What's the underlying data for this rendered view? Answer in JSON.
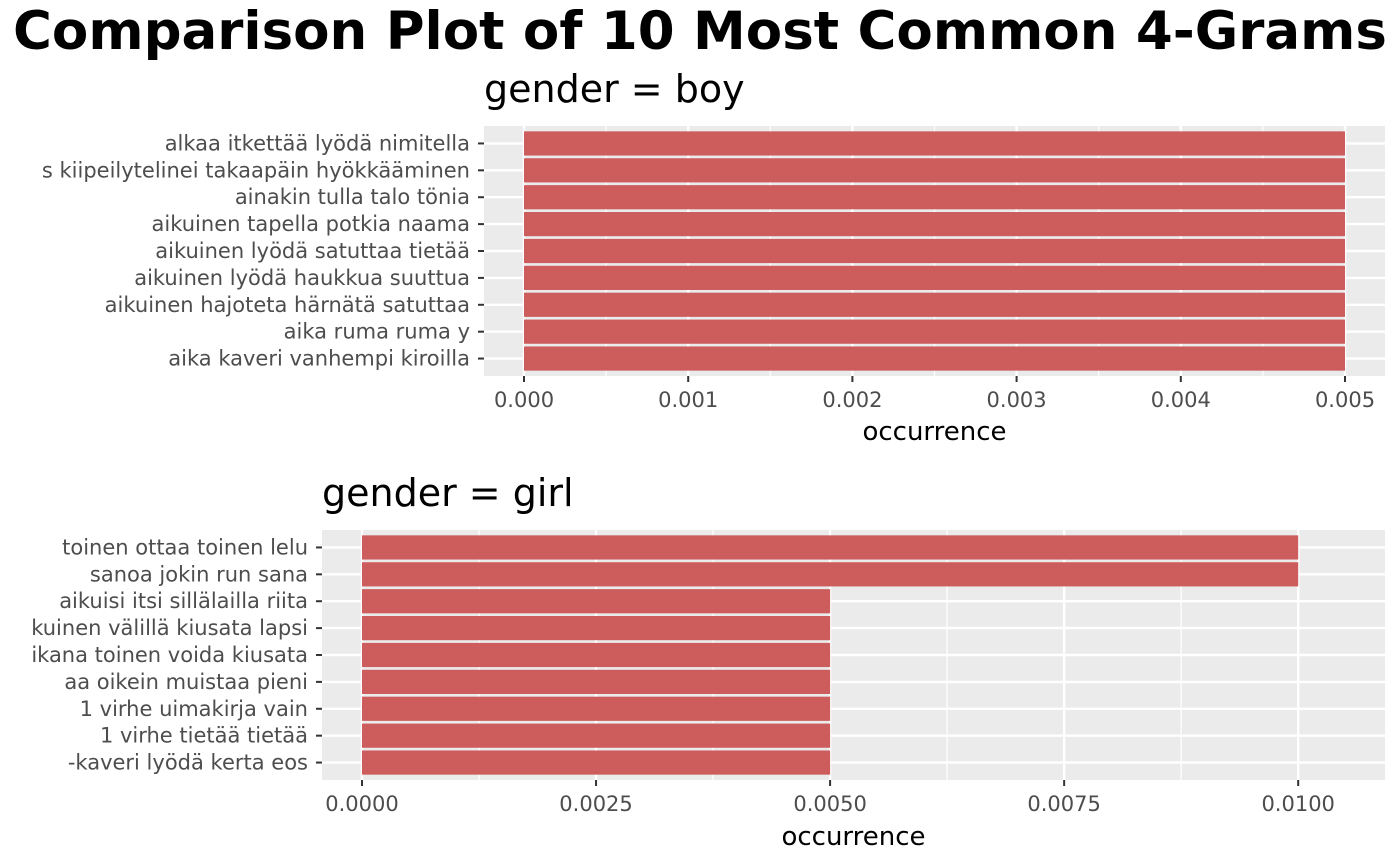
{
  "title": "Comparison Plot of 10 Most Common 4-Grams",
  "chart_data": [
    {
      "type": "bar",
      "orientation": "horizontal",
      "facet_title": "gender = boy",
      "xlabel": "occurrence",
      "ylabel": "",
      "xlim": [
        0,
        0.005
      ],
      "ticks": [
        "0.000",
        "0.001",
        "0.002",
        "0.003",
        "0.004",
        "0.005"
      ],
      "tick_values": [
        0,
        0.001,
        0.002,
        0.003,
        0.004,
        0.005
      ],
      "categories": [
        "alkaa itkettää lyödä nimitella",
        "s kiipeilytelinei takaapäin hyökkääminen",
        "ainakin tulla talo tönia",
        "aikuinen tapella potkia naama",
        "aikuinen lyödä satuttaa tietää",
        "aikuinen lyödä haukkua suuttua",
        "aikuinen hajoteta härnätä satuttaa",
        "aika ruma ruma y",
        "aika kaveri vanhempi kiroilla"
      ],
      "values": [
        0.005,
        0.005,
        0.005,
        0.005,
        0.005,
        0.005,
        0.005,
        0.005,
        0.005
      ],
      "bar_color": "#cd5c5c",
      "panel_color": "#ebebeb",
      "grid": true
    },
    {
      "type": "bar",
      "orientation": "horizontal",
      "facet_title": "gender = girl",
      "xlabel": "occurrence",
      "ylabel": "",
      "xlim": [
        0,
        0.0105
      ],
      "ticks": [
        "0.0000",
        "0.0025",
        "0.0050",
        "0.0075",
        "0.0100"
      ],
      "tick_values": [
        0,
        0.0025,
        0.005,
        0.0075,
        0.01
      ],
      "categories": [
        "toinen ottaa toinen lelu",
        "sanoa jokin run sana",
        "aikuisi itsi sillälailla riita",
        "kuinen välillä kiusata lapsi",
        "ikana toinen voida kiusata",
        "aa oikein muistaa pieni",
        "1 virhe uimakirja vain",
        "1 virhe tietää tietää",
        "-kaveri lyödä kerta eos"
      ],
      "values": [
        0.01,
        0.01,
        0.005,
        0.005,
        0.005,
        0.005,
        0.005,
        0.005,
        0.005
      ],
      "bar_color": "#cd5c5c",
      "panel_color": "#ebebeb",
      "grid": true
    }
  ]
}
